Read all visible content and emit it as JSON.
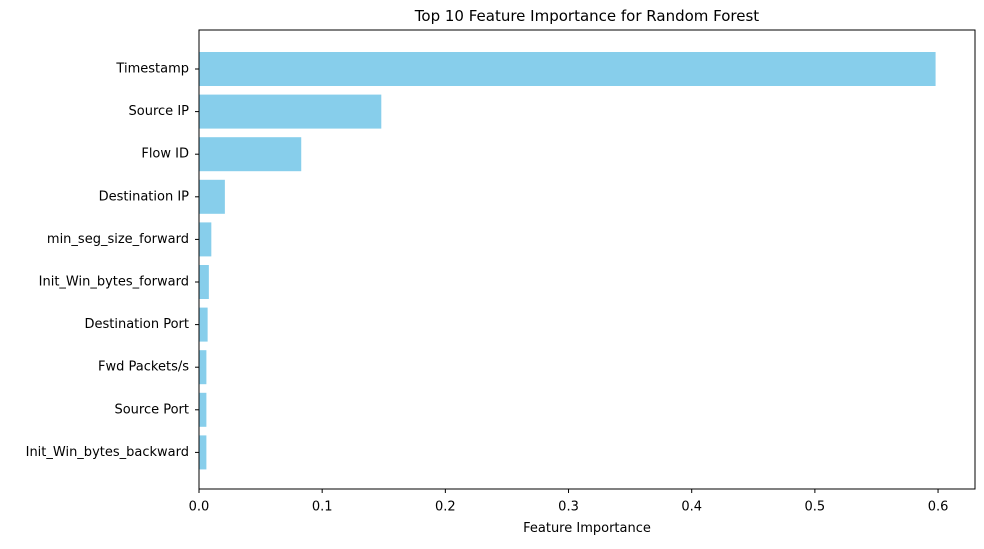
{
  "chart_data": {
    "type": "bar",
    "orientation": "horizontal",
    "title": "Top 10 Feature Importance for Random Forest",
    "xlabel": "Feature Importance",
    "ylabel": "",
    "categories": [
      "Timestamp",
      "Source IP",
      "Flow ID",
      "Destination IP",
      "min_seg_size_forward",
      "Init_Win_bytes_forward",
      "Destination Port",
      "Fwd Packets/s",
      "Source Port",
      "Init_Win_bytes_backward"
    ],
    "values": [
      0.598,
      0.148,
      0.083,
      0.021,
      0.01,
      0.008,
      0.007,
      0.006,
      0.006,
      0.006
    ],
    "xlim": [
      0,
      0.63
    ],
    "xticks": [
      0,
      0.1,
      0.2,
      0.3,
      0.4,
      0.5,
      0.6
    ],
    "xtick_labels": [
      "0.0",
      "0.1",
      "0.2",
      "0.3",
      "0.4",
      "0.5",
      "0.6"
    ],
    "grid": false,
    "legend": false,
    "bar_color": "#87CEEB",
    "axis_color": "#000000"
  }
}
